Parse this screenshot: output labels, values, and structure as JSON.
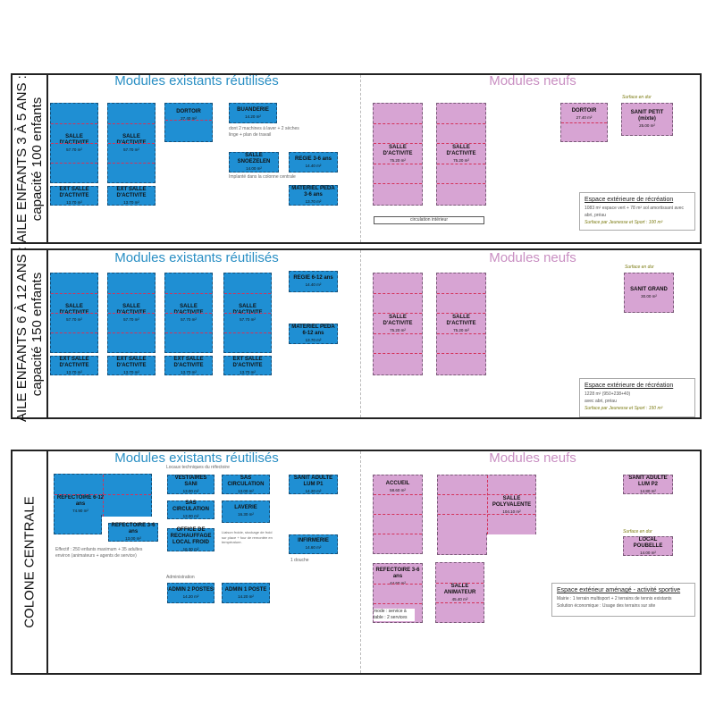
{
  "sections": [
    {
      "label_line1": "AILE ENFANTS 3 À 5 ANS :",
      "label_line2": "capacité 100 enfants",
      "existing_title": "Modules existants réutilisés",
      "new_title": "Modules neufs",
      "existing": [
        {
          "name": "SALLE D'ACTIVITE",
          "area": "57.70 m²"
        },
        {
          "name": "SALLE D'ACTIVITE",
          "area": "57.70 m²"
        },
        {
          "name": "EXT SALLE D'ACTIVITE",
          "area": "13.70 m²"
        },
        {
          "name": "EXT SALLE D'ACTIVITE",
          "area": "13.70 m²"
        },
        {
          "name": "DORTOIR",
          "area": "27.40 m²"
        },
        {
          "name": "BUANDERIE",
          "area": "14.20 m²"
        },
        {
          "name": "SALLE SNOEZELEN",
          "area": "14.00 m²"
        },
        {
          "name": "REGIE 3-6 ans",
          "area": "14.40 m²"
        },
        {
          "name": "MATERIEL PEDA 3-6 ans",
          "area": "13.70 m²"
        }
      ],
      "notes": [
        "dont 2 machines à laver + 2 sèches linge + plan de travail",
        "Implanté dans la colonne centrale"
      ],
      "new": [
        {
          "name": "SALLE D'ACTIVITE",
          "area": "75.20 m²"
        },
        {
          "name": "SALLE D'ACTIVITE",
          "area": "75.20 m²"
        },
        {
          "name": "DORTOIR",
          "area": "27.40 m²"
        },
        {
          "name": "SANIT PETIT (mixte)",
          "area": "25.00 m²"
        }
      ],
      "circulation": "circulation intérieur",
      "surface_en_dur": "Surface en dur",
      "outdoor": {
        "title": "Espace extérieure de récréation",
        "text": "1083 m² espace vert + 78 m² sol amortissant avec abri, préau",
        "js": "Surface par Jeunesse et Sport : 100 m²"
      }
    },
    {
      "label_line1": "AILE ENFANTS 6 À 12 ANS :",
      "label_line2": "capacité  150 enfants",
      "existing_title": "Modules existants réutilisés",
      "new_title": "Modules neufs",
      "existing": [
        {
          "name": "SALLE D'ACTIVITE",
          "area": "57.70 m²"
        },
        {
          "name": "SALLE D'ACTIVITE",
          "area": "57.70 m²"
        },
        {
          "name": "SALLE D'ACTIVITE",
          "area": "57.70 m²"
        },
        {
          "name": "SALLE D'ACTIVITE",
          "area": "57.70 m²"
        },
        {
          "name": "EXT SALLE D'ACTIVITE",
          "area": "13.70 m²"
        },
        {
          "name": "EXT SALLE D'ACTIVITE",
          "area": "13.70 m²"
        },
        {
          "name": "EXT SALLE D'ACTIVITE",
          "area": "13.70 m²"
        },
        {
          "name": "EXT SALLE D'ACTIVITE",
          "area": "13.70 m²"
        },
        {
          "name": "REGIE 6-12 ans",
          "area": "14.40 m²"
        },
        {
          "name": "MATERIEL PEDA 6-12 ans",
          "area": "13.70 m²"
        }
      ],
      "new": [
        {
          "name": "SALLE D'ACTIVITE",
          "area": "75.20 m²"
        },
        {
          "name": "SALLE D'ACTIVITE",
          "area": "75.20 m²"
        },
        {
          "name": "SANIT GRAND",
          "area": "30.00 m²"
        }
      ],
      "surface_en_dur": "Surface en dur",
      "outdoor": {
        "title": "Espace extérieure de récréation",
        "text1": "1228 m² (950+238+40)",
        "text2": "avec abri, préau",
        "js": "Surface par Jeunesse et Sport : 150 m²"
      }
    },
    {
      "label": "COLONE CENTRALE",
      "existing_title": "Modules existants réutilisés",
      "new_title": "Modules neufs",
      "existing": [
        {
          "name": "REFECTOIRE 6-12 ans",
          "area": "74.90 m²"
        },
        {
          "name": "REFECTOIRE 3-6 ans",
          "area": "13.00 m²"
        },
        {
          "name": "VESTIAIRES SANI",
          "area": "13.00 m²"
        },
        {
          "name": "SAS CIRCULATION",
          "area": "13.00 m²"
        },
        {
          "name": "SAS CIRCULATION",
          "area": "13.00 m²"
        },
        {
          "name": "LAVERIE",
          "area": "16.30 m²"
        },
        {
          "name": "OFFICE DE RECHAUFFAGE LOCAL FROID",
          "area": "16.30 m²"
        },
        {
          "name": "SANIT ADULTE LUM P1",
          "area": "14.20 m²"
        },
        {
          "name": "INFIRMERIE",
          "area": "14.60 m²"
        },
        {
          "name": "ADMIN 2 POSTES",
          "area": "14.20 m²"
        },
        {
          "name": "ADMIN 1 POSTE",
          "area": "14.20 m²"
        }
      ],
      "locaux_title": "Locaux techniques du réfectoire",
      "admin_title": "Administration",
      "notes": {
        "effectif": "Effectif : 250 enfants maximum + 35 adultes environ (animateurs + agents de service)",
        "liaison": "Liaison froide, stockage de froid sur place + four de remontée en température.",
        "douche": "1 douche"
      },
      "new": [
        {
          "name": "ACCUEIL",
          "area": "58.60 m²"
        },
        {
          "name": "SALLE POLYVALENTE",
          "area": "104.10 m²"
        },
        {
          "name": "REFECTOIRE 3-6 ans",
          "area": "44.60 m²"
        },
        {
          "name": "SALLE ANIMATEUR",
          "area": "45.40 m²"
        },
        {
          "name": "SANIT ADULTE LUM P2",
          "area": "14.80 m²"
        },
        {
          "name": "LOCAL POUBELLE",
          "area": "14.00 m²"
        }
      ],
      "mode_note": "mode : service à table : 2 services",
      "surface_en_dur": "Surface en dur",
      "outdoor": {
        "title": "Espace extérieur aménagé - activité sportive",
        "text1": "Mairie : 1 terrain multisport + 2 terrains de tennis existants",
        "text2": "Solution économique : Usage des terrains sur site"
      }
    }
  ],
  "colors": {
    "existing": "#1f8fd3",
    "new": "#d7a4d3",
    "existing_title": "#2a8fc4",
    "new_title": "#c98fc2",
    "dash": "#d4325a"
  }
}
